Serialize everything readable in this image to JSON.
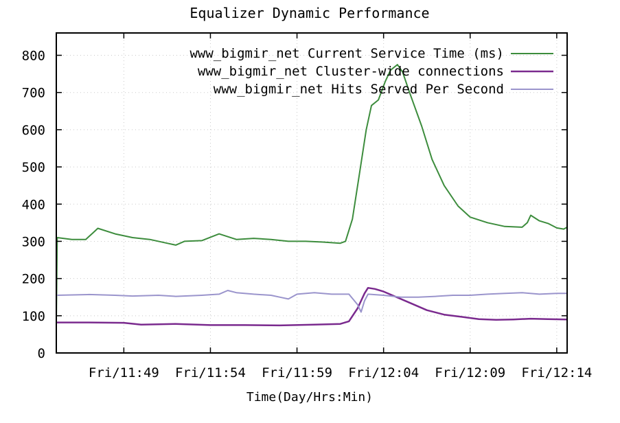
{
  "chart_data": {
    "type": "line",
    "title": "Equalizer Dynamic Performance",
    "xlabel": "Time(Day/Hrs:Min)",
    "ylabel": "",
    "x_unit": "minutes",
    "xlim": [
      45.1,
      74.6
    ],
    "ylim": [
      0,
      860
    ],
    "yticks": [
      0,
      100,
      200,
      300,
      400,
      500,
      600,
      700,
      800
    ],
    "xticks": [
      {
        "value": 49,
        "label": "Fri/11:49"
      },
      {
        "value": 54,
        "label": "Fri/11:54"
      },
      {
        "value": 59,
        "label": "Fri/11:59"
      },
      {
        "value": 64,
        "label": "Fri/12:04"
      },
      {
        "value": 69,
        "label": "Fri/12:09"
      },
      {
        "value": 74,
        "label": "Fri/12:14"
      }
    ],
    "grid": true,
    "legend_position": "top-right",
    "series": [
      {
        "name": "www_bigmir_net Current Service Time (ms)",
        "color": "#3c8c3c",
        "points": [
          [
            45.1,
            85
          ],
          [
            45.15,
            310
          ],
          [
            46,
            305
          ],
          [
            46.8,
            305
          ],
          [
            47.2,
            322
          ],
          [
            47.5,
            335
          ],
          [
            48.5,
            320
          ],
          [
            49.5,
            310
          ],
          [
            50.5,
            305
          ],
          [
            51.5,
            295
          ],
          [
            52,
            290
          ],
          [
            52.5,
            300
          ],
          [
            53.5,
            302
          ],
          [
            54.5,
            320
          ],
          [
            55.5,
            305
          ],
          [
            56.5,
            308
          ],
          [
            57.5,
            305
          ],
          [
            58.5,
            300
          ],
          [
            59.5,
            300
          ],
          [
            60.5,
            298
          ],
          [
            61.5,
            295
          ],
          [
            61.8,
            300
          ],
          [
            62.2,
            360
          ],
          [
            62.6,
            480
          ],
          [
            63,
            600
          ],
          [
            63.3,
            665
          ],
          [
            63.7,
            680
          ],
          [
            64.1,
            730
          ],
          [
            64.4,
            760
          ],
          [
            64.8,
            775
          ],
          [
            65.1,
            755
          ],
          [
            65.5,
            700
          ],
          [
            66.2,
            610
          ],
          [
            66.8,
            520
          ],
          [
            67.5,
            450
          ],
          [
            68.3,
            395
          ],
          [
            69,
            365
          ],
          [
            70,
            350
          ],
          [
            71,
            340
          ],
          [
            72,
            338
          ],
          [
            72.3,
            350
          ],
          [
            72.5,
            370
          ],
          [
            73,
            355
          ],
          [
            73.5,
            348
          ],
          [
            74,
            336
          ],
          [
            74.4,
            333
          ],
          [
            74.6,
            338
          ]
        ]
      },
      {
        "name": "www_bigmir_net Cluster-wide connections",
        "color": "#7a2a8e",
        "points": [
          [
            45.1,
            82
          ],
          [
            47,
            82
          ],
          [
            49,
            81
          ],
          [
            50,
            76
          ],
          [
            52,
            78
          ],
          [
            54,
            75
          ],
          [
            56,
            75
          ],
          [
            58,
            74
          ],
          [
            60,
            76
          ],
          [
            61.5,
            78
          ],
          [
            62,
            85
          ],
          [
            62.5,
            120
          ],
          [
            62.9,
            160
          ],
          [
            63.1,
            175
          ],
          [
            63.5,
            172
          ],
          [
            64,
            165
          ],
          [
            64.5,
            155
          ],
          [
            65.5,
            135
          ],
          [
            66.5,
            115
          ],
          [
            67.5,
            103
          ],
          [
            68.5,
            97
          ],
          [
            69.5,
            91
          ],
          [
            70.5,
            89
          ],
          [
            71.5,
            90
          ],
          [
            72.5,
            92
          ],
          [
            73.5,
            91
          ],
          [
            74.6,
            90
          ]
        ]
      },
      {
        "name": "www_bigmir_net Hits Served Per Second",
        "color": "#9a94cc",
        "points": [
          [
            45.1,
            155
          ],
          [
            47,
            157
          ],
          [
            48.5,
            155
          ],
          [
            49.5,
            153
          ],
          [
            51,
            155
          ],
          [
            52,
            152
          ],
          [
            53.5,
            155
          ],
          [
            54.5,
            158
          ],
          [
            55,
            168
          ],
          [
            55.5,
            162
          ],
          [
            56.5,
            158
          ],
          [
            57.5,
            155
          ],
          [
            58,
            150
          ],
          [
            58.5,
            145
          ],
          [
            59,
            158
          ],
          [
            60,
            162
          ],
          [
            61,
            158
          ],
          [
            62,
            158
          ],
          [
            62.5,
            130
          ],
          [
            62.7,
            110
          ],
          [
            62.9,
            140
          ],
          [
            63.1,
            158
          ],
          [
            64,
            155
          ],
          [
            65,
            150
          ],
          [
            66,
            150
          ],
          [
            67,
            152
          ],
          [
            68,
            155
          ],
          [
            69,
            155
          ],
          [
            70,
            158
          ],
          [
            71,
            160
          ],
          [
            72,
            162
          ],
          [
            73,
            158
          ],
          [
            74,
            160
          ],
          [
            74.6,
            160
          ]
        ]
      }
    ]
  }
}
